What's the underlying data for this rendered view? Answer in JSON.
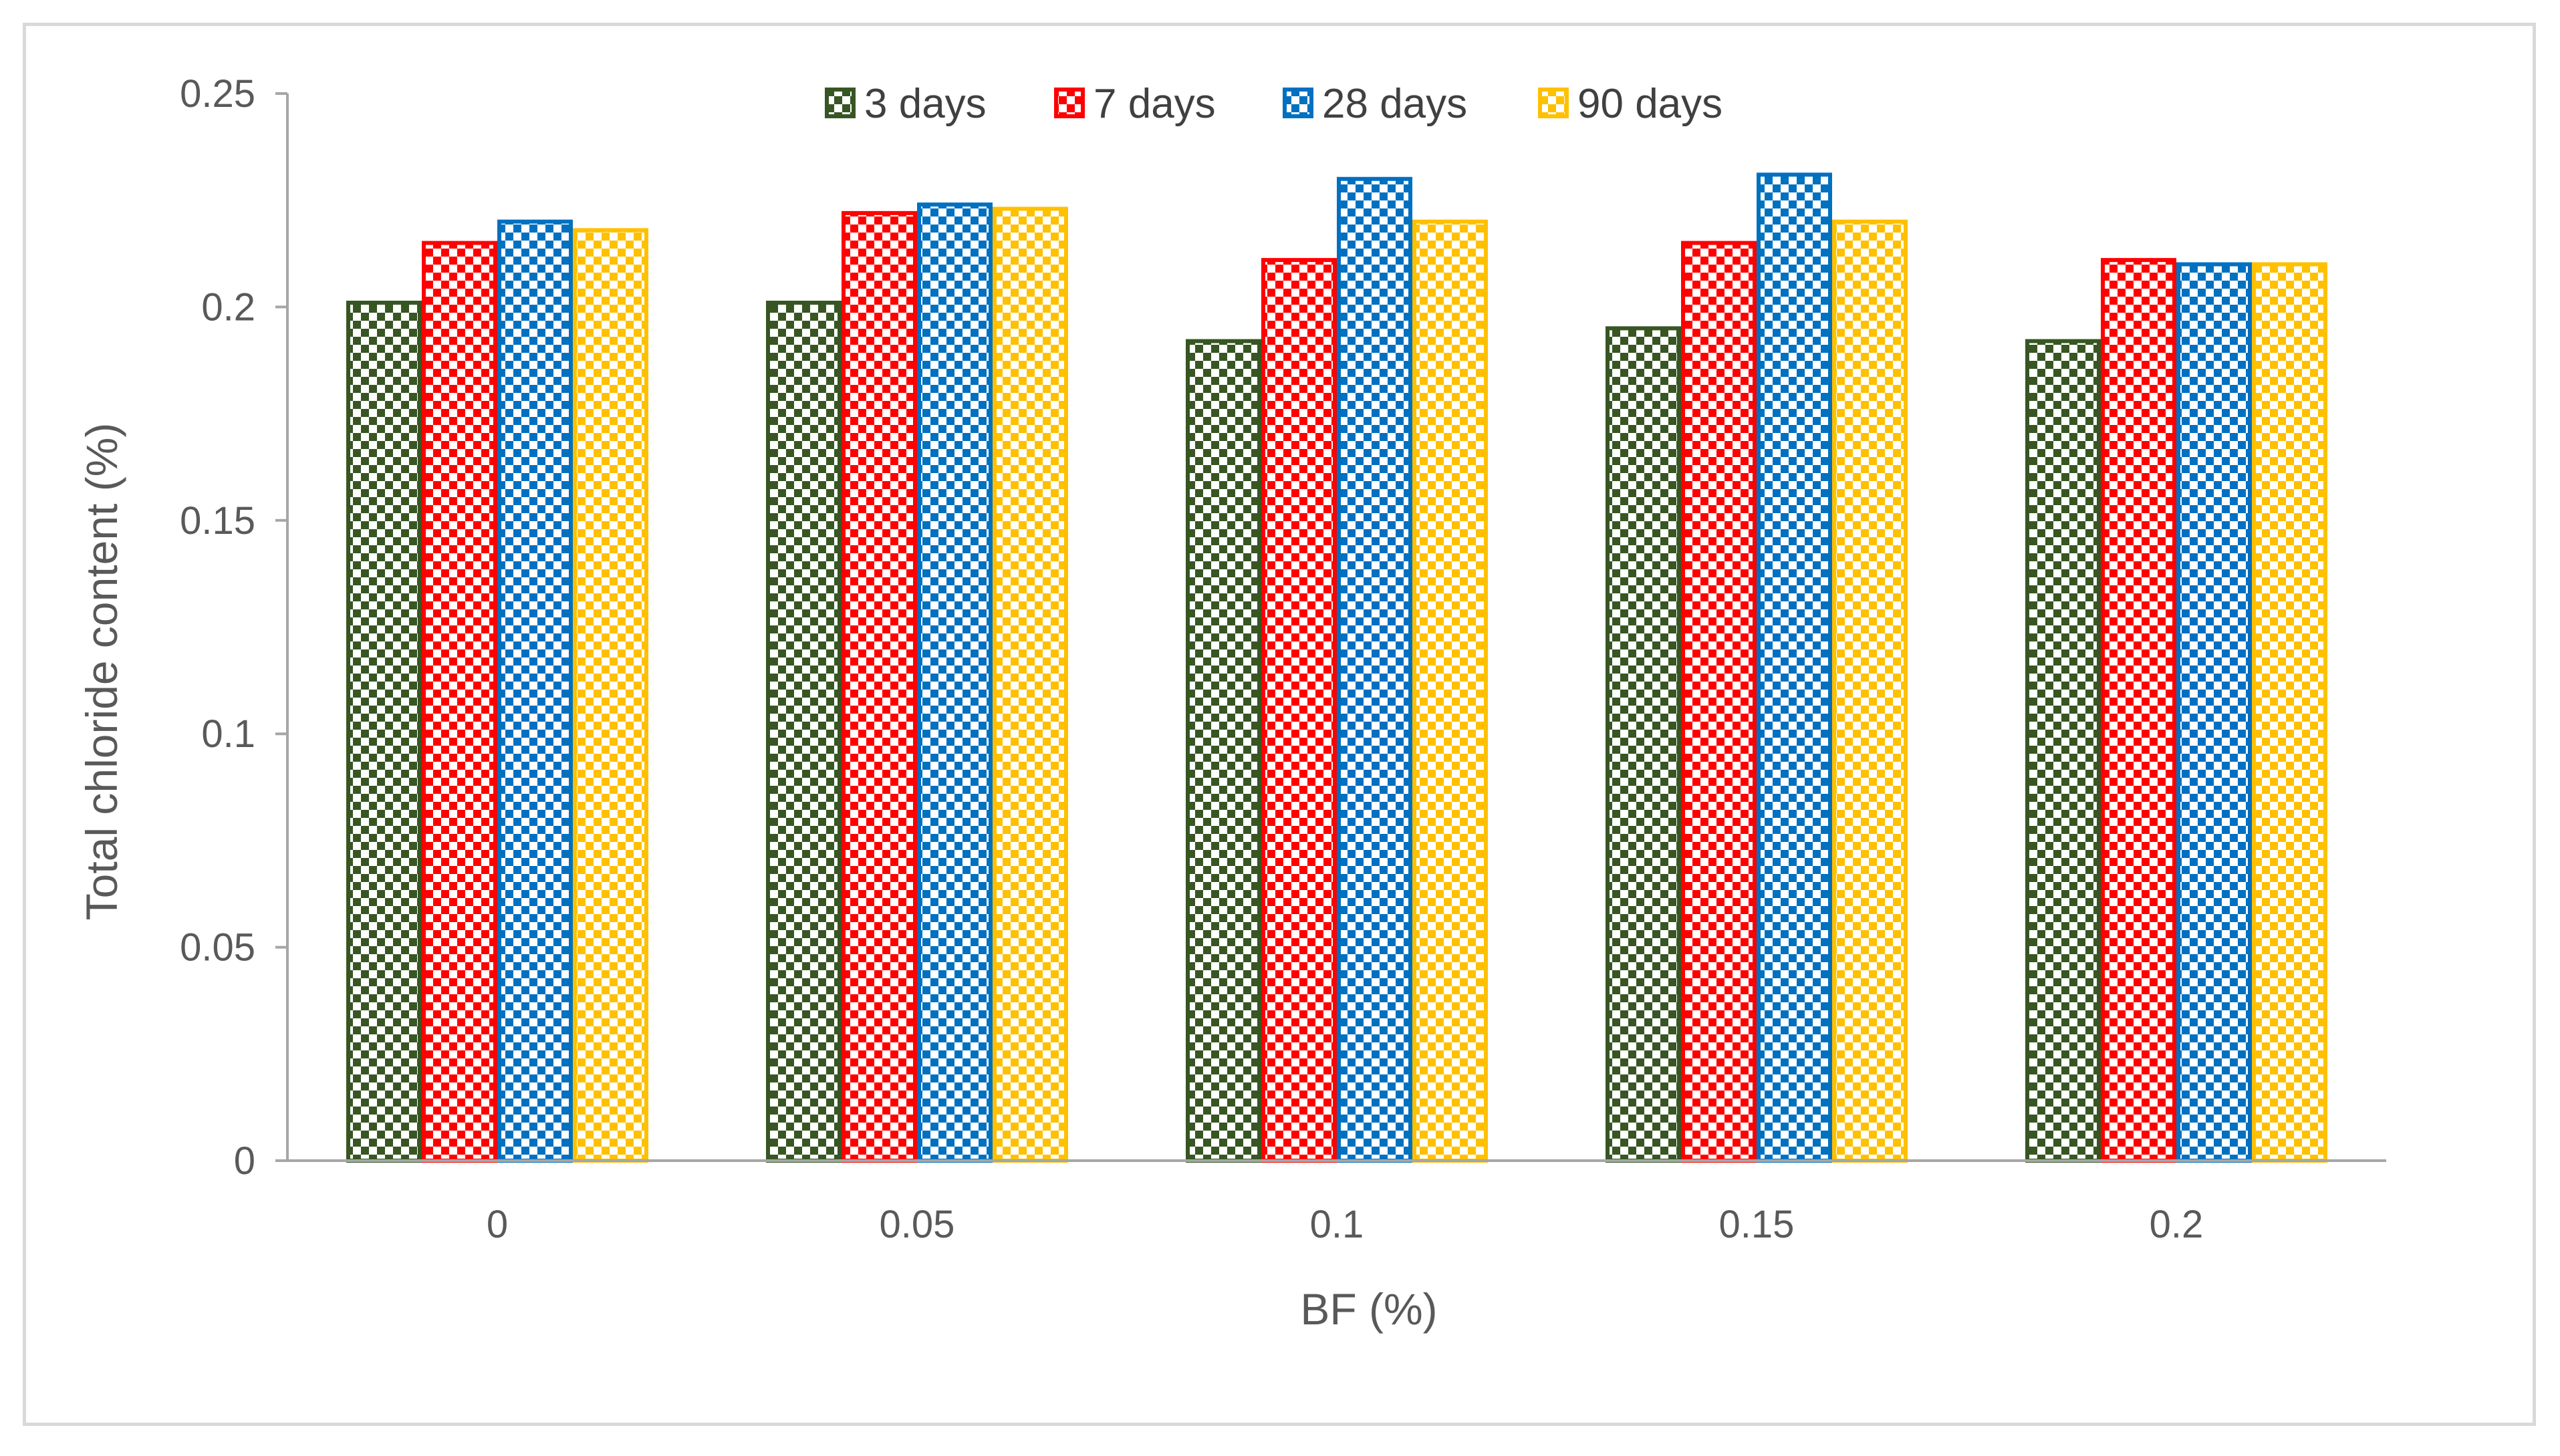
{
  "chart_data": {
    "type": "bar",
    "title": "",
    "xlabel": "BF (%)",
    "ylabel": "Total chloride content (%)",
    "categories": [
      "0",
      "0.05",
      "0.1",
      "0.15",
      "0.2"
    ],
    "ylim": [
      0,
      0.25
    ],
    "yticks": [
      "0",
      "0.05",
      "0.1",
      "0.15",
      "0.2",
      "0.25"
    ],
    "ytick_values": [
      0,
      0.05,
      0.1,
      0.15,
      0.2,
      0.25
    ],
    "grid": false,
    "legend_position": "top",
    "pattern": "checkerboard",
    "series": [
      {
        "name": "3 days",
        "color": "#375623",
        "values": [
          0.201,
          0.201,
          0.192,
          0.195,
          0.192
        ]
      },
      {
        "name": "7 days",
        "color": "#ff0000",
        "values": [
          0.215,
          0.222,
          0.211,
          0.215,
          0.211
        ]
      },
      {
        "name": "28 days",
        "color": "#0070c0",
        "values": [
          0.22,
          0.224,
          0.23,
          0.231,
          0.21
        ]
      },
      {
        "name": "90 days",
        "color": "#ffc000",
        "values": [
          0.218,
          0.223,
          0.22,
          0.22,
          0.21
        ]
      }
    ]
  }
}
